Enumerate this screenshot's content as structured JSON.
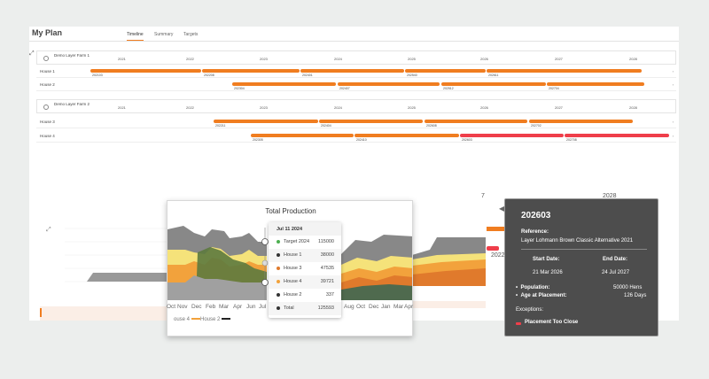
{
  "header": {
    "title": "My Plan",
    "tabs": [
      {
        "label": "Timeline",
        "active": true
      },
      {
        "label": "Summary",
        "active": false
      },
      {
        "label": "Targets",
        "active": false
      }
    ]
  },
  "years": [
    "2021",
    "2022",
    "2023",
    "2024",
    "2025",
    "2026",
    "2027",
    "2028"
  ],
  "farms": [
    {
      "name": "Demo Layer Farm 1",
      "houses": [
        {
          "label": "House 1",
          "placements": [
            {
              "id": "202103",
              "status": "normal"
            },
            {
              "id": "202208",
              "status": "normal"
            },
            {
              "id": "202401",
              "status": "normal"
            },
            {
              "id": "202540",
              "status": "normal"
            },
            {
              "id": "202611",
              "status": "normal"
            }
          ]
        },
        {
          "label": "House 2",
          "placements": [
            {
              "id": "202304",
              "status": "normal"
            },
            {
              "id": "202407",
              "status": "normal"
            },
            {
              "id": "202512",
              "status": "normal"
            },
            {
              "id": "202704",
              "status": "normal"
            }
          ]
        }
      ]
    },
    {
      "name": "Demo Layer Farm 2",
      "houses": [
        {
          "label": "House 3",
          "placements": [
            {
              "id": "202211",
              "status": "normal"
            },
            {
              "id": "202404",
              "status": "normal"
            },
            {
              "id": "202608",
              "status": "normal"
            },
            {
              "id": "202702",
              "status": "normal"
            }
          ]
        },
        {
          "label": "House 4",
          "placements": [
            {
              "id": "202305",
              "status": "normal"
            },
            {
              "id": "202410",
              "status": "normal"
            },
            {
              "id": "202603",
              "status": "warning"
            },
            {
              "id": "202708",
              "status": "warning"
            }
          ]
        }
      ]
    }
  ],
  "chart": {
    "title": "Total Production",
    "x_labels": [
      "Oct",
      "Nov",
      "Dec",
      "Feb",
      "Mar",
      "Apr",
      "Jun",
      "Jul",
      "Aug",
      "Oct",
      "Dec",
      "Jan",
      "Mar",
      "Apr",
      "Jun",
      "Jul",
      "Sep"
    ],
    "legend": [
      "ouse 4",
      "House 2"
    ],
    "colors": {
      "target": "#666666",
      "house1": "#f5e27a",
      "house3": "#f2a23c",
      "house4": "#e07a2c",
      "house2": "#4f6a4e"
    }
  },
  "tooltip": {
    "date": "Jul 11 2024",
    "rows": [
      {
        "name": "Target 2024",
        "value": "115000",
        "color": "#4caf50"
      },
      {
        "name": "House 1",
        "value": "38000",
        "color": "#333333"
      },
      {
        "name": "House 3",
        "value": "47535",
        "color": "#e07a2c"
      },
      {
        "name": "House 4",
        "value": "39721",
        "color": "#f2a23c"
      },
      {
        "name": "House 2",
        "value": "337",
        "color": "#333333"
      },
      {
        "name": "Total",
        "value": "125593",
        "color": "#333333"
      }
    ]
  },
  "detail": {
    "reference_id": "202603",
    "reference_label": "Reference:",
    "reference_text": "Layer Lohmann Brown Classic Alternative 2021",
    "start_label": "Start Date:",
    "start_value": "21 Mar 2026",
    "end_label": "End Date:",
    "end_value": "24 Jul 2027",
    "population_label": "Population:",
    "population_value": "50000 Hens",
    "age_label": "Age at Placement:",
    "age_value": "126 Days",
    "exceptions_label": "Exceptions:",
    "exception_item": "Placement Too Close",
    "exception_color": "#ef3e4a"
  },
  "background": {
    "year_7": "7",
    "year_2028": "2028",
    "bar_label": "2022"
  }
}
